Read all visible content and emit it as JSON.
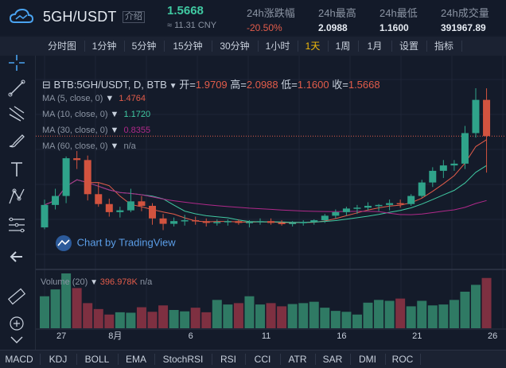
{
  "header": {
    "pair": "5GH/USDT",
    "intro_label": "介绍",
    "price": "1.5668",
    "cny": "≈ 11.31 CNY",
    "stats": [
      {
        "label": "24h涨跌幅",
        "value": "-20.50%",
        "color": "#e25c4a"
      },
      {
        "label": "24h最高",
        "value": "2.0988",
        "color": "#e6ebf2"
      },
      {
        "label": "24h最低",
        "value": "1.1600",
        "color": "#e6ebf2"
      },
      {
        "label": "24h成交量",
        "value": "391967.89",
        "color": "#e6ebf2"
      }
    ]
  },
  "timeframes": [
    "分时图",
    "1分钟",
    "5分钟",
    "15分钟",
    "30分钟",
    "1小时",
    "1天",
    "1周",
    "1月",
    "设置",
    "指标"
  ],
  "active_timeframe": "1天",
  "legend": {
    "symbol": "BTB:5GH/USDT, D, BTB",
    "open_label": "开=",
    "open": "1.9709",
    "high_label": "高=",
    "high": "2.0988",
    "low_label": "低=",
    "low": "1.1600",
    "close_label": "收=",
    "close": "1.5668",
    "ma": [
      {
        "label": "MA (5, close, 0)",
        "value": "1.4764",
        "color": "#e25c4a"
      },
      {
        "label": "MA (10, close, 0)",
        "value": "1.1720",
        "color": "#40c9a2"
      },
      {
        "label": "MA (30, close, 0)",
        "value": "0.8355",
        "color": "#b0298a"
      },
      {
        "label": "MA (60, close, 0)",
        "value": "n/a",
        "color": "#8b94a3"
      }
    ]
  },
  "watermark": "Chart by TradingView",
  "volume": {
    "label": "Volume (20)",
    "value": "396.978K",
    "extra": "n/a"
  },
  "x_axis_labels": [
    "27",
    "8月",
    "6",
    "11",
    "16",
    "21",
    "26"
  ],
  "indicators": [
    "MACD",
    "KDJ",
    "BOLL",
    "EMA",
    "StochRSI",
    "RSI",
    "CCI",
    "ATR",
    "SAR",
    "DMI",
    "ROC"
  ],
  "toolbar_icons": [
    "crosshair-icon",
    "line-tool-icon",
    "fork-tool-icon",
    "brush-icon",
    "text-tool-icon",
    "pattern-icon",
    "fib-icon",
    "back-arrow-icon",
    "ruler-icon",
    "zoom-plus-icon"
  ],
  "chart_data": {
    "type": "candlestick",
    "y_range": [
      0.25,
      2.25
    ],
    "candles": [
      {
        "open": 0.55,
        "high": 0.86,
        "low": 0.53,
        "close": 0.8
      },
      {
        "open": 0.8,
        "high": 0.98,
        "low": 0.75,
        "close": 0.9
      },
      {
        "open": 0.9,
        "high": 1.34,
        "low": 0.82,
        "close": 1.32
      },
      {
        "open": 1.32,
        "high": 1.4,
        "low": 1.2,
        "close": 1.3
      },
      {
        "open": 1.3,
        "high": 1.35,
        "low": 0.85,
        "close": 0.92
      },
      {
        "open": 0.92,
        "high": 1.05,
        "low": 0.78,
        "close": 0.81
      },
      {
        "open": 0.81,
        "high": 0.87,
        "low": 0.67,
        "close": 0.72
      },
      {
        "open": 0.72,
        "high": 0.78,
        "low": 0.66,
        "close": 0.74
      },
      {
        "open": 0.74,
        "high": 0.98,
        "low": 0.72,
        "close": 0.84
      },
      {
        "open": 0.84,
        "high": 0.9,
        "low": 0.73,
        "close": 0.79
      },
      {
        "open": 0.79,
        "high": 0.82,
        "low": 0.58,
        "close": 0.65
      },
      {
        "open": 0.65,
        "high": 0.7,
        "low": 0.52,
        "close": 0.59
      },
      {
        "open": 0.59,
        "high": 0.66,
        "low": 0.56,
        "close": 0.62
      },
      {
        "open": 0.62,
        "high": 0.69,
        "low": 0.57,
        "close": 0.63
      },
      {
        "open": 0.63,
        "high": 0.67,
        "low": 0.58,
        "close": 0.62
      },
      {
        "open": 0.62,
        "high": 0.65,
        "low": 0.56,
        "close": 0.6
      },
      {
        "open": 0.6,
        "high": 0.64,
        "low": 0.57,
        "close": 0.61
      },
      {
        "open": 0.61,
        "high": 0.64,
        "low": 0.57,
        "close": 0.62
      },
      {
        "open": 0.62,
        "high": 0.64,
        "low": 0.58,
        "close": 0.6
      },
      {
        "open": 0.6,
        "high": 0.63,
        "low": 0.55,
        "close": 0.61
      },
      {
        "open": 0.61,
        "high": 0.65,
        "low": 0.58,
        "close": 0.62
      },
      {
        "open": 0.62,
        "high": 0.65,
        "low": 0.58,
        "close": 0.6
      },
      {
        "open": 0.6,
        "high": 0.63,
        "low": 0.57,
        "close": 0.59
      },
      {
        "open": 0.59,
        "high": 0.62,
        "low": 0.56,
        "close": 0.6
      },
      {
        "open": 0.6,
        "high": 0.63,
        "low": 0.57,
        "close": 0.61
      },
      {
        "open": 0.61,
        "high": 0.64,
        "low": 0.58,
        "close": 0.63
      },
      {
        "open": 0.63,
        "high": 0.7,
        "low": 0.6,
        "close": 0.68
      },
      {
        "open": 0.68,
        "high": 0.75,
        "low": 0.65,
        "close": 0.72
      },
      {
        "open": 0.72,
        "high": 0.78,
        "low": 0.68,
        "close": 0.76
      },
      {
        "open": 0.76,
        "high": 0.8,
        "low": 0.7,
        "close": 0.77
      },
      {
        "open": 0.77,
        "high": 0.83,
        "low": 0.74,
        "close": 0.79
      },
      {
        "open": 0.79,
        "high": 0.81,
        "low": 0.73,
        "close": 0.8
      },
      {
        "open": 0.8,
        "high": 0.86,
        "low": 0.74,
        "close": 0.82
      },
      {
        "open": 0.82,
        "high": 0.86,
        "low": 0.77,
        "close": 0.81
      },
      {
        "open": 0.81,
        "high": 0.92,
        "low": 0.79,
        "close": 0.9
      },
      {
        "open": 0.9,
        "high": 1.08,
        "low": 0.88,
        "close": 1.05
      },
      {
        "open": 1.05,
        "high": 1.22,
        "low": 1.0,
        "close": 1.18
      },
      {
        "open": 1.18,
        "high": 1.3,
        "low": 1.1,
        "close": 1.24
      },
      {
        "open": 1.24,
        "high": 1.3,
        "low": 1.18,
        "close": 1.26
      },
      {
        "open": 1.26,
        "high": 1.68,
        "low": 1.2,
        "close": 1.6
      },
      {
        "open": 1.6,
        "high": 2.1,
        "low": 1.55,
        "close": 1.97
      },
      {
        "open": 1.97,
        "high": 2.0988,
        "low": 1.16,
        "close": 1.5668
      }
    ],
    "volumes": [
      70,
      85,
      120,
      88,
      55,
      42,
      30,
      35,
      34,
      46,
      36,
      50,
      40,
      37,
      45,
      35,
      62,
      52,
      55,
      70,
      52,
      55,
      48,
      53,
      55,
      58,
      45,
      38,
      36,
      30,
      56,
      62,
      60,
      65,
      48,
      60,
      50,
      52,
      62,
      80,
      95,
      110
    ]
  }
}
